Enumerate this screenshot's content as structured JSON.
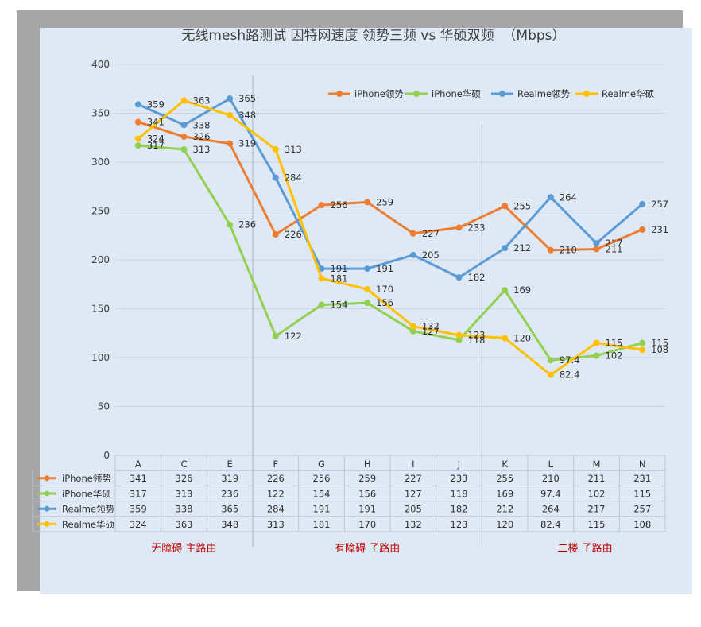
{
  "chart_data": {
    "type": "line",
    "title": "无线mesh路测试 因特网速度 领势三频 vs 华硕双频  （Mbps）",
    "categories": [
      "A",
      "C",
      "E",
      "F",
      "G",
      "H",
      "I",
      "J",
      "K",
      "L",
      "M",
      "N"
    ],
    "ylim": [
      0,
      400
    ],
    "yticks": [
      "0",
      "50",
      "100",
      "150",
      "200",
      "250",
      "300",
      "350",
      "400"
    ],
    "grid": true,
    "legend_position": "top-right",
    "series": [
      {
        "name": "iPhone领势",
        "color": "#ed7d31",
        "values": [
          341,
          326,
          319,
          226,
          256,
          259,
          227,
          233,
          255,
          210,
          211,
          231
        ],
        "labels": [
          "341",
          "326",
          "319",
          "226",
          "256",
          "259",
          "227",
          "233",
          "255",
          "210",
          "211",
          "231"
        ]
      },
      {
        "name": "iPhone华硕",
        "color": "#92d050",
        "values": [
          317,
          313,
          236,
          122,
          154,
          156,
          127,
          118,
          169,
          97.4,
          102,
          115
        ],
        "labels": [
          "317",
          "313",
          "236",
          "122",
          "154",
          "156",
          "127",
          "118",
          "169",
          "97.4",
          "102",
          "115"
        ]
      },
      {
        "name": "Realme领势",
        "color": "#5b9bd5",
        "values": [
          359,
          338,
          365,
          284,
          191,
          191,
          205,
          182,
          212,
          264,
          217,
          257
        ],
        "labels": [
          "359",
          "338",
          "365",
          "284",
          "191",
          "191",
          "205",
          "182",
          "212",
          "264",
          "217",
          "257"
        ]
      },
      {
        "name": "Realme华硕",
        "color": "#ffc000",
        "values": [
          324,
          363,
          348,
          313,
          181,
          170,
          132,
          123,
          120,
          82.4,
          115,
          108
        ],
        "labels": [
          "324",
          "363",
          "348",
          "313",
          "181",
          "170",
          "132",
          "123",
          "120",
          "82.4",
          "115",
          "108"
        ]
      }
    ],
    "sections": [
      "无障碍  主路由",
      "有障碍   子路由",
      "二楼 子路由"
    ]
  }
}
